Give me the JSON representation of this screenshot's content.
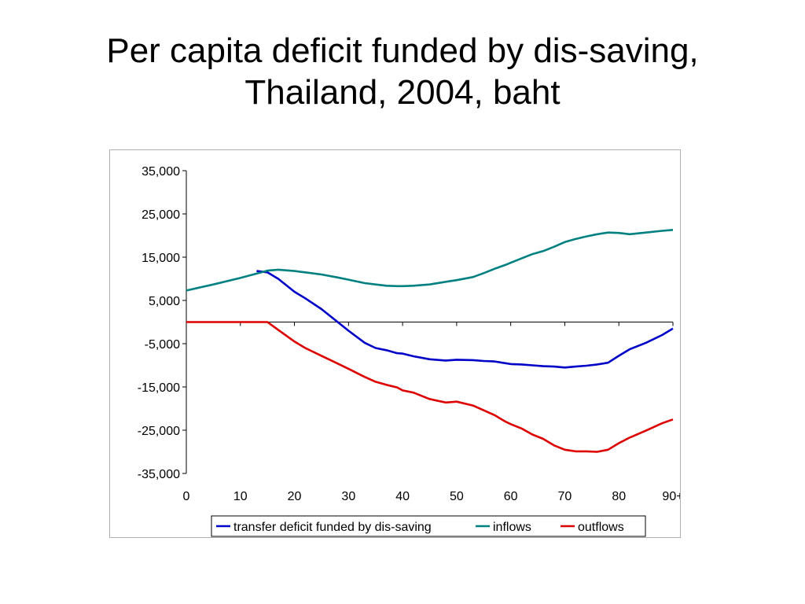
{
  "title": {
    "line1": "Per capita deficit funded by dis-saving,",
    "line2": "Thailand, 2004, baht"
  },
  "chart_data": {
    "type": "line",
    "title": "Per capita deficit funded by dis-saving, Thailand, 2004, baht",
    "xlabel": "",
    "ylabel": "",
    "xlim": [
      0,
      90
    ],
    "ylim": [
      -35000,
      35000
    ],
    "x_ticks": [
      0,
      10,
      20,
      30,
      40,
      50,
      60,
      70,
      80,
      90
    ],
    "x_tick_labels": [
      "0",
      "10",
      "20",
      "30",
      "40",
      "50",
      "60",
      "70",
      "80",
      "90+"
    ],
    "y_ticks": [
      35000,
      25000,
      15000,
      5000,
      -5000,
      -15000,
      -25000,
      -35000
    ],
    "y_tick_labels": [
      "35,000",
      "25,000",
      "15,000",
      "5,000",
      "-5,000",
      "-15,000",
      "-25,000",
      "-35,000"
    ],
    "grid": false,
    "legend_position": "bottom",
    "x": [
      0,
      5,
      10,
      13,
      15,
      17,
      20,
      22,
      25,
      28,
      30,
      33,
      35,
      37,
      39,
      40,
      42,
      45,
      48,
      50,
      53,
      55,
      57,
      59,
      60,
      62,
      64,
      66,
      68,
      70,
      72,
      74,
      76,
      78,
      80,
      82,
      85,
      88,
      90
    ],
    "series": [
      {
        "name": "transfer deficit funded by dis-saving",
        "color": "#0000c8",
        "values": [
          null,
          null,
          null,
          11800,
          11500,
          10000,
          7000,
          5500,
          3000,
          0,
          -2000,
          -4800,
          -6000,
          -6500,
          -7200,
          -7300,
          -7900,
          -8600,
          -8900,
          -8700,
          -8800,
          -9000,
          -9100,
          -9500,
          -9700,
          -9800,
          -10000,
          -10200,
          -10300,
          -10500,
          -10300,
          -10100,
          -9800,
          -9400,
          -7800,
          -6300,
          -4800,
          -3000,
          -1500
        ]
      },
      {
        "name": "inflows",
        "color": "#008080",
        "values": [
          7300,
          8700,
          10200,
          11200,
          11900,
          12100,
          11800,
          11500,
          11000,
          10300,
          9800,
          9000,
          8700,
          8400,
          8300,
          8300,
          8400,
          8700,
          9300,
          9700,
          10400,
          11300,
          12300,
          13200,
          13700,
          14700,
          15700,
          16400,
          17400,
          18500,
          19200,
          19800,
          20300,
          20700,
          20600,
          20300,
          20700,
          21100,
          21300
        ]
      },
      {
        "name": "outflows",
        "color": "#dc0000",
        "values": [
          0,
          0,
          0,
          0,
          0,
          -1800,
          -4500,
          -6000,
          -7800,
          -9600,
          -10800,
          -12700,
          -13800,
          -14500,
          -15100,
          -15800,
          -16300,
          -17800,
          -18600,
          -18400,
          -19300,
          -20400,
          -21500,
          -23000,
          -23600,
          -24600,
          -26000,
          -27000,
          -28500,
          -29500,
          -29900,
          -29900,
          -30000,
          -29500,
          -28000,
          -26700,
          -25100,
          -23400,
          -22500
        ]
      }
    ]
  }
}
